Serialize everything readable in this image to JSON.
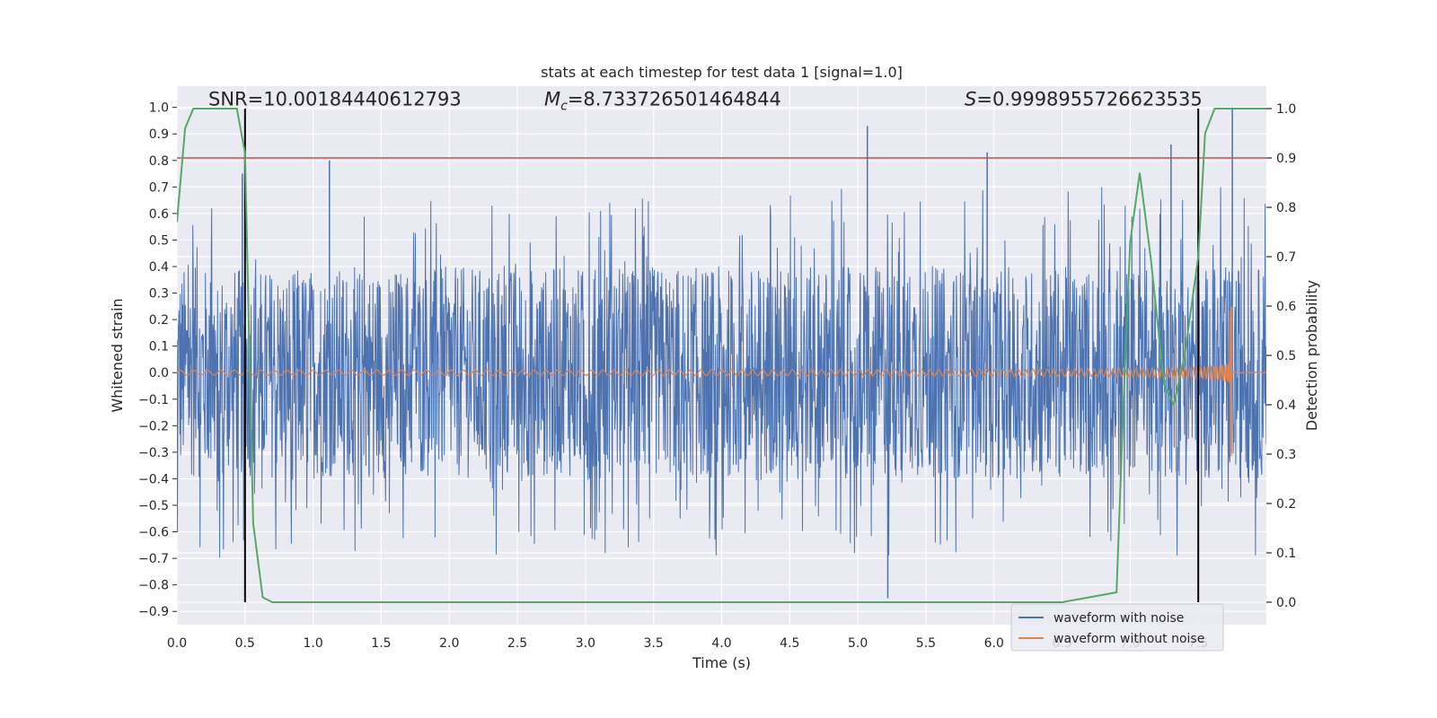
{
  "chart_data": {
    "type": "line",
    "title": "stats at each timestep for test data 1 [signal=1.0]",
    "xlabel": "Time (s)",
    "ylabel": "Whitened strain",
    "y2label": "Detection probability",
    "xlim": [
      0.0,
      8.0
    ],
    "ylim": [
      -0.95,
      1.08
    ],
    "y2lim": [
      -0.0455,
      1.0455
    ],
    "xticks": [
      0.0,
      0.5,
      1.0,
      1.5,
      2.0,
      2.5,
      3.0,
      3.5,
      4.0,
      4.5,
      5.0,
      5.5,
      6.0,
      6.5,
      7.0,
      7.5
    ],
    "xtick_labels": [
      "0.0",
      "0.5",
      "1.0",
      "1.5",
      "2.0",
      "2.5",
      "3.0",
      "3.5",
      "4.0",
      "4.5",
      "5.0",
      "5.5",
      "6.0",
      "6.5",
      "7.0",
      "7.5"
    ],
    "yticks": [
      1.0,
      0.9,
      0.8,
      0.7,
      0.6,
      0.5,
      0.4,
      0.3,
      0.2,
      0.1,
      0.0,
      -0.1,
      -0.2,
      -0.3,
      -0.4,
      -0.5,
      -0.6,
      -0.7,
      -0.8,
      -0.9
    ],
    "ytick_labels": [
      "1.0",
      "0.9",
      "0.8",
      "0.7",
      "0.6",
      "0.5",
      "0.4",
      "0.3",
      "0.2",
      "0.1",
      "0.0",
      "−0.1",
      "−0.2",
      "−0.3",
      "−0.4",
      "−0.5",
      "−0.6",
      "−0.7",
      "−0.8",
      "−0.9"
    ],
    "y2ticks": [
      1.0,
      0.9,
      0.8,
      0.7,
      0.6,
      0.5,
      0.4,
      0.3,
      0.2,
      0.1,
      0.0
    ],
    "y2tick_labels": [
      "1.0",
      "0.9",
      "0.8",
      "0.7",
      "0.6",
      "0.5",
      "0.4",
      "0.3",
      "0.2",
      "0.1",
      "0.0"
    ],
    "annotations": {
      "snr": "SNR=10.00184440612793",
      "mc_symbol": "M",
      "mc_subscript": "c",
      "mc_value": "=8.733726501464844",
      "s_symbol": "S",
      "s_value": "=0.9998955726623535"
    },
    "threshold": {
      "value": 0.9,
      "axis": "y2",
      "color": "#c44e52"
    },
    "vlines": [
      0.5,
      7.5
    ],
    "series": [
      {
        "name": "waveform with noise",
        "color": "#4c72b0",
        "description": "dense noisy strain; approx. core band ±0.4 with spikes",
        "envelope_core": 0.4,
        "spikes_max": [
          0.75,
          0.8,
          0.93,
          0.83,
          0.86,
          1.0
        ],
        "spike_min": -0.85
      },
      {
        "name": "waveform without noise",
        "color": "#dd8452",
        "description": "chirp signal, amplitude grows toward merger near t=7.75 s",
        "chirp_start_amp": 0.01,
        "peak_amp_up": 0.25,
        "peak_amp_down": -0.33,
        "merger_time": 7.75
      },
      {
        "name": "detection probability",
        "color": "#55a868",
        "axis": "y2",
        "x": [
          0.0,
          0.06,
          0.12,
          0.2,
          0.3,
          0.4,
          0.44,
          0.5,
          0.56,
          0.63,
          0.7,
          0.8,
          1.0,
          2.0,
          3.0,
          4.0,
          5.0,
          6.0,
          6.5,
          6.9,
          6.95,
          7.0,
          7.07,
          7.15,
          7.25,
          7.32,
          7.4,
          7.5,
          7.55,
          7.62,
          7.7,
          7.8,
          8.0
        ],
        "y": [
          0.77,
          0.96,
          1.0,
          1.0,
          1.0,
          1.0,
          1.0,
          0.91,
          0.16,
          0.01,
          0.0,
          0.0,
          0.0,
          0.0,
          0.0,
          0.0,
          0.0,
          0.0,
          0.0,
          0.02,
          0.4,
          0.73,
          0.87,
          0.7,
          0.44,
          0.4,
          0.5,
          0.7,
          0.95,
          1.0,
          1.0,
          1.0,
          1.0
        ]
      }
    ],
    "legend": {
      "position": "lower-right",
      "entries": [
        "waveform with noise",
        "waveform without noise"
      ]
    }
  },
  "colors": {
    "axes_bg": "#eaeaf2",
    "grid": "#ffffff",
    "noise": "#4c72b0",
    "clean": "#dd8452",
    "prob": "#55a868",
    "threshold": "#c44e52",
    "vline": "#000000"
  }
}
